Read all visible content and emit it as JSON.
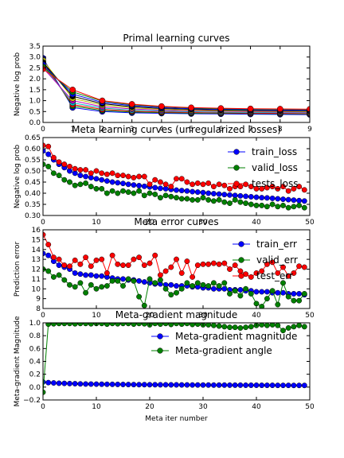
{
  "figure": {
    "background": "#ffffff"
  },
  "chart_data": [
    {
      "type": "line",
      "title": "Primal learning curves",
      "xlabel": "",
      "ylabel": "Negative log prob",
      "xlim": [
        0,
        9
      ],
      "ylim": [
        0,
        3.5
      ],
      "xticks": [
        "0",
        "1",
        "2",
        "3",
        "4",
        "5",
        "6",
        "7",
        "8",
        "9"
      ],
      "yticks": [
        "0.0",
        "0.5",
        "1.0",
        "1.5",
        "2.0",
        "2.5",
        "3.0",
        "3.5"
      ],
      "x": [
        0,
        1,
        2,
        3,
        4,
        5,
        6,
        7,
        8,
        9
      ],
      "colors": [
        "#0000ff",
        "#008000",
        "#ff0000",
        "#00bfbf",
        "#bf00bf",
        "#bfbf00",
        "#000000"
      ],
      "curves": [
        [
          2.95,
          0.68,
          0.5,
          0.44,
          0.42,
          0.4,
          0.39,
          0.38,
          0.37,
          0.36
        ],
        [
          2.8,
          0.75,
          0.55,
          0.48,
          0.45,
          0.43,
          0.42,
          0.41,
          0.4,
          0.39
        ],
        [
          2.7,
          0.82,
          0.6,
          0.52,
          0.48,
          0.46,
          0.44,
          0.43,
          0.42,
          0.41
        ],
        [
          2.6,
          0.9,
          0.66,
          0.56,
          0.52,
          0.49,
          0.47,
          0.46,
          0.45,
          0.44
        ],
        [
          2.5,
          1.0,
          0.72,
          0.62,
          0.56,
          0.53,
          0.51,
          0.49,
          0.48,
          0.47
        ],
        [
          2.85,
          1.1,
          0.8,
          0.67,
          0.6,
          0.56,
          0.54,
          0.52,
          0.51,
          0.5
        ],
        [
          2.75,
          1.2,
          0.86,
          0.72,
          0.64,
          0.6,
          0.57,
          0.55,
          0.54,
          0.53
        ],
        [
          2.65,
          1.3,
          0.92,
          0.77,
          0.68,
          0.63,
          0.6,
          0.58,
          0.57,
          0.56
        ],
        [
          2.55,
          1.4,
          0.98,
          0.81,
          0.72,
          0.66,
          0.63,
          0.61,
          0.6,
          0.59
        ],
        [
          2.45,
          1.5,
          1.0,
          0.84,
          0.74,
          0.68,
          0.65,
          0.63,
          0.62,
          0.61
        ]
      ],
      "grid": false
    },
    {
      "type": "line",
      "title": "Meta learning curves (unregularized losses)",
      "xlabel": "",
      "ylabel": "Negative log prob",
      "xlim": [
        0,
        50
      ],
      "ylim": [
        0.3,
        0.65
      ],
      "xticks": [
        "0",
        "10",
        "20",
        "30",
        "40",
        "50"
      ],
      "yticks": [
        "0.30",
        "0.35",
        "0.40",
        "0.45",
        "0.50",
        "0.55",
        "0.60",
        "0.65"
      ],
      "x": [
        0,
        1,
        2,
        3,
        4,
        5,
        6,
        7,
        8,
        9,
        10,
        11,
        12,
        13,
        14,
        15,
        16,
        17,
        18,
        19,
        20,
        21,
        22,
        23,
        24,
        25,
        26,
        27,
        28,
        29,
        30,
        31,
        32,
        33,
        34,
        35,
        36,
        37,
        38,
        39,
        40,
        41,
        42,
        43,
        44,
        45,
        46,
        47,
        48,
        49
      ],
      "legend": {
        "loc": "upper right"
      },
      "series": [
        {
          "name": "train_loss",
          "color": "#0000ff",
          "values": [
            0.59,
            0.575,
            0.55,
            0.53,
            0.515,
            0.5,
            0.49,
            0.48,
            0.475,
            0.47,
            0.465,
            0.46,
            0.455,
            0.45,
            0.447,
            0.444,
            0.44,
            0.437,
            0.434,
            0.431,
            0.428,
            0.425,
            0.422,
            0.42,
            0.417,
            0.414,
            0.412,
            0.41,
            0.407,
            0.405,
            0.403,
            0.4,
            0.398,
            0.396,
            0.394,
            0.392,
            0.39,
            0.388,
            0.386,
            0.384,
            0.382,
            0.38,
            0.379,
            0.377,
            0.375,
            0.373,
            0.371,
            0.369,
            0.367,
            0.365
          ]
        },
        {
          "name": "valid_loss",
          "color": "#008000",
          "values": [
            0.53,
            0.52,
            0.49,
            0.48,
            0.46,
            0.45,
            0.435,
            0.44,
            0.445,
            0.43,
            0.42,
            0.42,
            0.4,
            0.41,
            0.4,
            0.41,
            0.405,
            0.4,
            0.41,
            0.39,
            0.4,
            0.395,
            0.38,
            0.39,
            0.385,
            0.38,
            0.375,
            0.375,
            0.37,
            0.37,
            0.38,
            0.37,
            0.365,
            0.37,
            0.36,
            0.355,
            0.37,
            0.36,
            0.355,
            0.35,
            0.345,
            0.345,
            0.34,
            0.35,
            0.34,
            0.345,
            0.335,
            0.34,
            0.345,
            0.335
          ]
        },
        {
          "name": "tests_loss",
          "color": "#ff0000",
          "values": [
            0.615,
            0.61,
            0.56,
            0.54,
            0.53,
            0.52,
            0.51,
            0.505,
            0.505,
            0.49,
            0.5,
            0.49,
            0.485,
            0.49,
            0.48,
            0.48,
            0.475,
            0.47,
            0.475,
            0.475,
            0.44,
            0.46,
            0.45,
            0.44,
            0.43,
            0.465,
            0.465,
            0.45,
            0.44,
            0.445,
            0.44,
            0.445,
            0.43,
            0.44,
            0.435,
            0.42,
            0.43,
            0.43,
            0.44,
            0.43,
            0.42,
            0.42,
            0.425,
            0.43,
            0.42,
            0.43,
            0.41,
            0.42,
            0.43,
            0.415
          ]
        }
      ],
      "grid": false
    },
    {
      "type": "line",
      "title": "Meta error curves",
      "xlabel": "",
      "ylabel": "Prediction error",
      "xlim": [
        0,
        50
      ],
      "ylim": [
        8,
        16
      ],
      "xticks": [
        "0",
        "10",
        "20",
        "30",
        "40",
        "50"
      ],
      "yticks": [
        "8",
        "9",
        "10",
        "11",
        "12",
        "13",
        "14",
        "15",
        "16"
      ],
      "x": [
        0,
        1,
        2,
        3,
        4,
        5,
        6,
        7,
        8,
        9,
        10,
        11,
        12,
        13,
        14,
        15,
        16,
        17,
        18,
        19,
        20,
        21,
        22,
        23,
        24,
        25,
        26,
        27,
        28,
        29,
        30,
        31,
        32,
        33,
        34,
        35,
        36,
        37,
        38,
        39,
        40,
        41,
        42,
        43,
        44,
        45,
        46,
        47,
        48,
        49
      ],
      "legend": {
        "loc": "upper right"
      },
      "series": [
        {
          "name": "train_err",
          "color": "#0000ff",
          "values": [
            13.6,
            13.4,
            12.8,
            12.4,
            12.2,
            12.0,
            11.6,
            11.5,
            11.4,
            11.4,
            11.3,
            11.3,
            11.2,
            11.1,
            11.0,
            11.0,
            10.9,
            10.9,
            10.8,
            10.7,
            10.6,
            10.5,
            10.5,
            10.4,
            10.4,
            10.3,
            10.3,
            10.3,
            10.2,
            10.2,
            10.1,
            10.1,
            10.0,
            10.0,
            10.0,
            9.9,
            9.9,
            9.9,
            9.8,
            9.8,
            9.7,
            9.7,
            9.7,
            9.6,
            9.6,
            9.6,
            9.5,
            9.5,
            9.5,
            9.4
          ]
        },
        {
          "name": "valid_err",
          "color": "#008000",
          "values": [
            12.0,
            11.8,
            11.2,
            11.4,
            10.9,
            10.4,
            10.2,
            10.6,
            9.6,
            10.4,
            10.0,
            10.2,
            10.3,
            10.8,
            10.8,
            10.3,
            11.0,
            10.8,
            9.2,
            8.3,
            11.0,
            10.6,
            10.9,
            10.0,
            9.4,
            9.6,
            10.0,
            10.6,
            10.3,
            10.6,
            10.4,
            10.3,
            10.6,
            10.3,
            10.6,
            9.5,
            9.8,
            9.3,
            10.0,
            9.5,
            8.5,
            8.2,
            9.0,
            9.8,
            8.4,
            10.6,
            9.2,
            8.8,
            8.8,
            9.5
          ]
        },
        {
          "name": "test_err",
          "color": "#ff0000",
          "values": [
            15.5,
            14.5,
            13.2,
            13.0,
            12.4,
            12.3,
            12.9,
            12.5,
            13.2,
            12.3,
            12.9,
            13.0,
            11.6,
            13.4,
            12.5,
            12.4,
            12.4,
            13.0,
            13.2,
            12.4,
            12.6,
            13.4,
            11.4,
            11.8,
            12.2,
            13.0,
            11.6,
            12.8,
            11.2,
            12.4,
            12.5,
            12.5,
            12.6,
            12.5,
            12.6,
            12.0,
            12.4,
            11.8,
            11.5,
            11.2,
            11.6,
            11.8,
            12.5,
            12.7,
            11.6,
            12.2,
            11.3,
            11.6,
            12.3,
            12.2
          ]
        }
      ],
      "grid": false
    },
    {
      "type": "line",
      "title": "Meta-gradient magnitude",
      "xlabel": "Meta iter number",
      "ylabel": "Meta-gradient Magnitude",
      "xlim": [
        0,
        50
      ],
      "ylim": [
        -0.2,
        1.0
      ],
      "xticks": [
        "0",
        "10",
        "20",
        "30",
        "40",
        "50"
      ],
      "yticks": [
        "−0.2",
        "0.0",
        "0.2",
        "0.4",
        "0.6",
        "0.8",
        "1.0"
      ],
      "x": [
        0,
        1,
        2,
        3,
        4,
        5,
        6,
        7,
        8,
        9,
        10,
        11,
        12,
        13,
        14,
        15,
        16,
        17,
        18,
        19,
        20,
        21,
        22,
        23,
        24,
        25,
        26,
        27,
        28,
        29,
        30,
        31,
        32,
        33,
        34,
        35,
        36,
        37,
        38,
        39,
        40,
        41,
        42,
        43,
        44,
        45,
        46,
        47,
        48,
        49
      ],
      "legend": {
        "loc": "upper right"
      },
      "series": [
        {
          "name": "Meta-gradient magnitude",
          "color": "#0000ff",
          "values": [
            0.08,
            0.07,
            0.065,
            0.06,
            0.058,
            0.055,
            0.053,
            0.05,
            0.048,
            0.047,
            0.046,
            0.045,
            0.044,
            0.043,
            0.042,
            0.041,
            0.04,
            0.039,
            0.038,
            0.038,
            0.037,
            0.037,
            0.036,
            0.036,
            0.035,
            0.035,
            0.034,
            0.034,
            0.033,
            0.033,
            0.032,
            0.032,
            0.031,
            0.031,
            0.031,
            0.03,
            0.03,
            0.03,
            0.029,
            0.029,
            0.029,
            0.028,
            0.028,
            0.028,
            0.027,
            0.027,
            0.027,
            0.026,
            0.026,
            0.026
          ]
        },
        {
          "name": "Meta-gradient angle",
          "color": "#008000",
          "values": [
            -0.08,
            0.98,
            0.985,
            0.99,
            0.99,
            0.99,
            0.985,
            0.99,
            0.99,
            0.985,
            0.99,
            0.99,
            0.98,
            0.99,
            0.985,
            0.99,
            0.99,
            0.98,
            0.99,
            0.985,
            0.97,
            0.99,
            0.98,
            0.99,
            0.975,
            0.99,
            0.98,
            0.99,
            0.975,
            0.98,
            0.97,
            0.97,
            0.96,
            0.95,
            0.94,
            0.93,
            0.93,
            0.92,
            0.93,
            0.94,
            0.96,
            0.97,
            0.96,
            0.97,
            0.96,
            0.88,
            0.92,
            0.94,
            0.96,
            0.94
          ]
        }
      ],
      "grid": false
    }
  ]
}
